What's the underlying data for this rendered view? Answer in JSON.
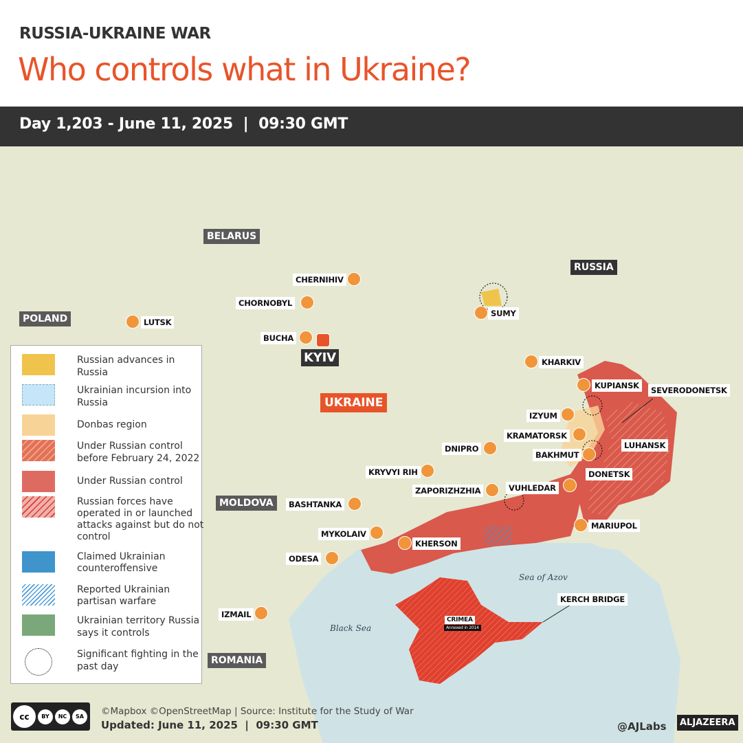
{
  "header": {
    "kicker": "RUSSIA-UKRAINE WAR",
    "title": "Who controls what in Ukraine?",
    "subtitle": "Day 1,203 - June 11, 2025  |  09:30 GMT"
  },
  "countries": {
    "belarus": "BELARUS",
    "russia": "RUSSIA",
    "poland": "POLAND",
    "moldova": "MOLDOVA",
    "romania": "ROMANIA",
    "ukraine": "UKRAINE"
  },
  "cities": {
    "chernihiv": "CHERNIHIV",
    "chornobyl": "CHORNOBYL",
    "lutsk": "LUTSK",
    "bucha": "BUCHA",
    "kyiv": "KYIV",
    "sumy": "SUMY",
    "kharkiv": "KHARKIV",
    "kupiansk": "KUPIANSK",
    "severodonetsk": "SEVERODONETSK",
    "izyum": "IZYUM",
    "kramatorsk": "KRAMATORSK",
    "bakhmut": "BAKHMUT",
    "luhansk": "LUHANSK",
    "dnipro": "DNIPRO",
    "kryvyi_rih": "KRYVYI RIH",
    "donetsk": "DONETSK",
    "vuhledar": "VUHLEDAR",
    "zaporizhzhia": "ZAPORIZHZHIA",
    "bashtanka": "BASHTANKA",
    "mariupol": "MARIUPOL",
    "mykolaiv": "MYKOLAIV",
    "kherson": "KHERSON",
    "odesa": "ODESA",
    "izmail": "IZMAIL",
    "kerch_bridge": "KERCH BRIDGE",
    "crimea": "CRIMEA",
    "crimea_note": "Annexed in 2014"
  },
  "seas": {
    "black_sea": "Black Sea",
    "azov": "Sea of Azov"
  },
  "legend": [
    {
      "label": "Russian advances in Russia",
      "color": "#f0c44c"
    },
    {
      "label": "Ukrainian incursion into Russia",
      "color": "#c5e6f8"
    },
    {
      "label": "Donbas region",
      "color": "#f8d398"
    },
    {
      "label": "Under Russian control before February 24, 2022",
      "color": "#e2705a"
    },
    {
      "label": "Under Russian control",
      "color": "#de6b62"
    },
    {
      "label": "Russian forces have operated in or launched attacks against but do not control",
      "color": "#e8a29c"
    },
    {
      "label": "Claimed Ukrainian counteroffensive",
      "color": "#3f94cc"
    },
    {
      "label": "Reported Ukrainian partisan warfare",
      "color": "#4a9ad6"
    },
    {
      "label": "Ukrainian territory Russia says it controls",
      "color": "#7aa87a"
    },
    {
      "label": "Significant fighting in the past day",
      "color": "#000000"
    }
  ],
  "footer": {
    "credits": "©Mapbox ©OpenStreetMap | Source: Institute for the Study of War",
    "updated": "Updated: June 11, 2025  |  09:30 GMT",
    "handle": "@AJLabs",
    "brand": "ALJAZEERA",
    "license": [
      "BY",
      "NC",
      "SA"
    ]
  },
  "colors": {
    "accent": "#e8542a",
    "occupied": "#d9594c",
    "crimea": "#e0402e",
    "sea": "#cfe3e6",
    "city_dot": "#f0953a"
  }
}
